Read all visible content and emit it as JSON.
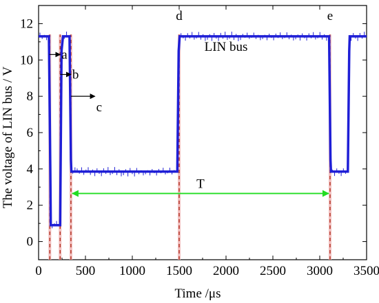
{
  "chart_data": {
    "type": "line",
    "xlabel": "Time /μs",
    "ylabel": "The voltage of LIN bus / V",
    "xlim": [
      0,
      3500
    ],
    "ylim": [
      -1,
      13
    ],
    "xticks": [
      0,
      500,
      1000,
      1500,
      2000,
      2500,
      3000,
      3500
    ],
    "yticks": [
      0,
      2,
      4,
      6,
      8,
      10,
      12
    ],
    "grid": false,
    "legend": "none",
    "series": [
      {
        "color": "#1f1fd6",
        "x": [
          0,
          110,
          125,
          130,
          230,
          245,
          260,
          330,
          345,
          350,
          1480,
          1495,
          1505,
          3100,
          3115,
          3120,
          3300,
          3315,
          3320,
          3500
        ],
        "y": [
          11.3,
          11.3,
          4.0,
          0.9,
          0.9,
          10.5,
          11.3,
          11.3,
          4.5,
          3.85,
          3.85,
          10.5,
          11.3,
          11.3,
          4.5,
          3.85,
          3.85,
          10.5,
          11.3,
          11.3
        ]
      }
    ],
    "markers": [
      {
        "x": 120,
        "label": ""
      },
      {
        "x": 230,
        "label": ""
      },
      {
        "x": 345,
        "label": ""
      },
      {
        "x": 1500,
        "label": "d"
      },
      {
        "x": 3110,
        "label": "e"
      }
    ],
    "annotations": [
      {
        "label": "a",
        "arrow_from": 115,
        "arrow_to": 230,
        "y": 10.3
      },
      {
        "label": "b",
        "arrow_from": 230,
        "arrow_to": 345,
        "y": 9.2
      },
      {
        "label": "c",
        "arrow_from": 345,
        "arrow_to": 600,
        "y": 8.0
      }
    ],
    "text_labels": [
      {
        "text": "LIN bus",
        "x": 2000,
        "y": 10.5
      }
    ],
    "period": {
      "label": "T",
      "x_start": 345,
      "x_end": 3110,
      "y": 2.8,
      "color": "#22dd22"
    }
  }
}
